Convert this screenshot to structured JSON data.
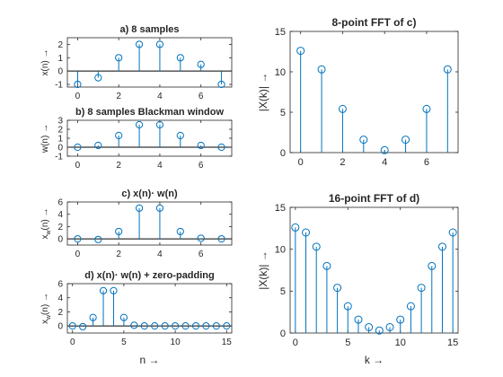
{
  "colors": {
    "stem": "#0072BD",
    "axis": "#262626",
    "background": "#ffffff"
  },
  "chart_data": [
    {
      "type": "stem",
      "title": "a) 8 samples",
      "xlabel": "",
      "ylabel": "x(n) →",
      "xlim": [
        -0.5,
        7.5
      ],
      "ylim": [
        -1.2,
        2.5
      ],
      "xticks": [
        0,
        2,
        4,
        6
      ],
      "yticks": [
        -1,
        0,
        1,
        2
      ],
      "x": [
        0,
        1,
        2,
        3,
        4,
        5,
        6,
        7
      ],
      "values": [
        -1.0,
        -0.5,
        1.0,
        2.0,
        2.0,
        1.0,
        0.5,
        -1.0
      ],
      "grid": false
    },
    {
      "type": "stem",
      "title": "b) 8 samples Blackman window",
      "xlabel": "",
      "ylabel": "w(n) →",
      "xlim": [
        -0.5,
        7.5
      ],
      "ylim": [
        -1.0,
        3.0
      ],
      "xticks": [
        0,
        2,
        4,
        6
      ],
      "yticks": [
        -1,
        0,
        1,
        2,
        3
      ],
      "x": [
        0,
        1,
        2,
        3,
        4,
        5,
        6,
        7
      ],
      "values": [
        0.0,
        0.2,
        1.3,
        2.5,
        2.5,
        1.3,
        0.2,
        0.0
      ],
      "grid": false
    },
    {
      "type": "stem",
      "title": "c) x(n)· w(n)",
      "xlabel": "",
      "ylabel_main": "x",
      "ylabel_sub": "w",
      "ylabel_rest": "(n) →",
      "xlim": [
        -0.5,
        7.5
      ],
      "ylim": [
        -1.0,
        6.0
      ],
      "xticks": [
        0,
        2,
        4,
        6
      ],
      "yticks": [
        0,
        2,
        4,
        6
      ],
      "x": [
        0,
        1,
        2,
        3,
        4,
        5,
        6,
        7
      ],
      "values": [
        0.0,
        -0.1,
        1.2,
        5.0,
        5.0,
        1.2,
        0.1,
        0.0
      ],
      "grid": false
    },
    {
      "type": "stem",
      "title": "d) x(n)· w(n) + zero-padding",
      "xlabel": "n →",
      "ylabel_main": "x",
      "ylabel_sub": "w",
      "ylabel_rest": "(n) →",
      "xlim": [
        -0.5,
        15.5
      ],
      "ylim": [
        -1.0,
        6.0
      ],
      "xticks": [
        0,
        5,
        10,
        15
      ],
      "yticks": [
        0,
        2,
        4,
        6
      ],
      "x": [
        0,
        1,
        2,
        3,
        4,
        5,
        6,
        7,
        8,
        9,
        10,
        11,
        12,
        13,
        14,
        15
      ],
      "values": [
        0.0,
        -0.1,
        1.2,
        5.0,
        5.0,
        1.2,
        0.1,
        0.0,
        0,
        0,
        0,
        0,
        0,
        0,
        0,
        0
      ],
      "grid": false
    },
    {
      "type": "stem",
      "title": "8-point FFT of c)",
      "xlabel": "",
      "ylabel": "|X(k)| →",
      "xlim": [
        -0.5,
        7.5
      ],
      "ylim": [
        0,
        15
      ],
      "xticks": [
        0,
        2,
        4,
        6
      ],
      "yticks": [
        0,
        5,
        10,
        15
      ],
      "x": [
        0,
        1,
        2,
        3,
        4,
        5,
        6,
        7
      ],
      "values": [
        12.6,
        10.3,
        5.4,
        1.6,
        0.3,
        1.6,
        5.4,
        10.3
      ],
      "grid": false
    },
    {
      "type": "stem",
      "title": "16-point FFT of d)",
      "xlabel": "k →",
      "ylabel": "|X(k)| →",
      "xlim": [
        -0.5,
        15.5
      ],
      "ylim": [
        0,
        15
      ],
      "xticks": [
        0,
        5,
        10,
        15
      ],
      "yticks": [
        0,
        5,
        10,
        15
      ],
      "x": [
        0,
        1,
        2,
        3,
        4,
        5,
        6,
        7,
        8,
        9,
        10,
        11,
        12,
        13,
        14,
        15
      ],
      "values": [
        12.6,
        12.0,
        10.3,
        8.0,
        5.4,
        3.2,
        1.6,
        0.7,
        0.3,
        0.7,
        1.6,
        3.2,
        5.4,
        8.0,
        10.3,
        12.0
      ],
      "grid": false
    }
  ]
}
